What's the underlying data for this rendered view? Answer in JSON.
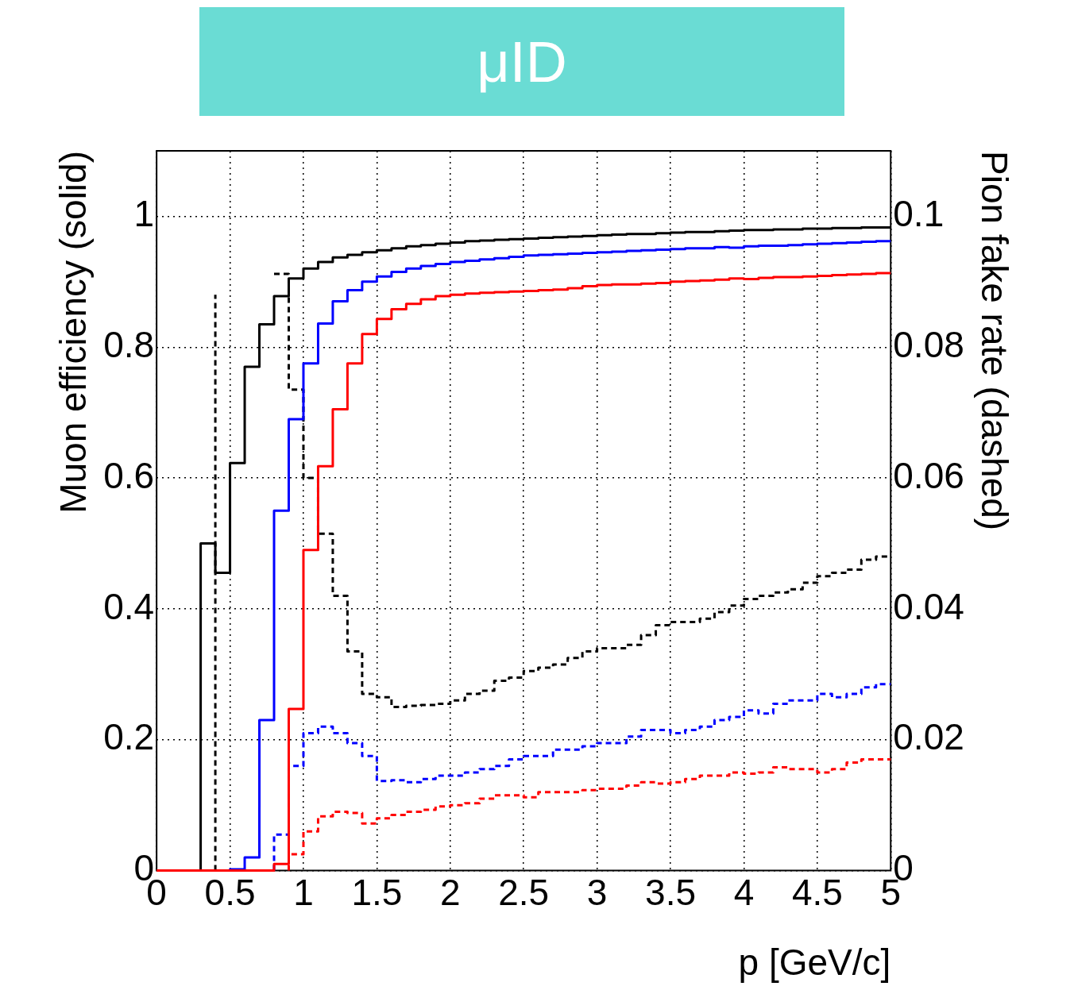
{
  "chart_data": {
    "type": "step",
    "title": "μID",
    "xlabel": "p [GeV/c]",
    "ylabel": "Muon efficiency (solid)",
    "y2label": "Pion fake rate (dashed)",
    "x": [
      0,
      0.1,
      0.2,
      0.3,
      0.4,
      0.5,
      0.6,
      0.7,
      0.8,
      0.9,
      1,
      1.1,
      1.2,
      1.3,
      1.4,
      1.5,
      1.6,
      1.7,
      1.8,
      1.9,
      2,
      2.1,
      2.2,
      2.3,
      2.4,
      2.5,
      2.6,
      2.7,
      2.8,
      2.9,
      3,
      3.1,
      3.2,
      3.3,
      3.4,
      3.5,
      3.6,
      3.7,
      3.8,
      3.9,
      4,
      4.1,
      4.2,
      4.3,
      4.4,
      4.5,
      4.6,
      4.7,
      4.8,
      4.9,
      5
    ],
    "xlim": [
      0,
      5
    ],
    "xticks": [
      0,
      0.5,
      1,
      1.5,
      2,
      2.5,
      3,
      3.5,
      4,
      4.5,
      5
    ],
    "ylim": [
      0,
      1.1
    ],
    "yticks": [
      0,
      0.2,
      0.4,
      0.6,
      0.8,
      1
    ],
    "y2lim": [
      0,
      0.11
    ],
    "y2ticks": [
      0,
      0.02,
      0.04,
      0.06,
      0.08,
      0.1
    ],
    "grid": true,
    "series": [
      {
        "color": "#000000",
        "line_style": "dashed",
        "axis": "y2",
        "x": [
          0.4,
          0.4,
          0.5,
          0.6,
          0.7,
          0.8,
          0.9,
          1,
          1.1,
          1.2,
          1.3,
          1.4,
          1.5,
          1.6,
          1.7,
          1.8,
          1.9,
          2,
          2.1,
          2.2,
          2.3,
          2.4,
          2.5,
          2.6,
          2.7,
          2.8,
          2.9,
          3,
          3.1,
          3.2,
          3.3,
          3.4,
          3.5,
          3.6,
          3.7,
          3.8,
          3.9,
          4,
          4.1,
          4.2,
          4.3,
          4.4,
          4.5,
          4.6,
          4.7,
          4.8,
          4.9,
          5
        ],
        "values": [
          0,
          0.088,
          null,
          null,
          null,
          0.0912,
          0.0735,
          0.06,
          0.0515,
          0.042,
          0.0335,
          0.027,
          0.0265,
          0.025,
          0.0252,
          0.0253,
          0.0255,
          0.026,
          0.027,
          0.0275,
          0.029,
          0.0295,
          0.0305,
          0.031,
          0.0315,
          0.0325,
          0.0335,
          0.034,
          0.034,
          0.0345,
          0.036,
          0.0375,
          0.038,
          0.038,
          0.0385,
          0.0395,
          0.0405,
          0.0415,
          0.042,
          0.0425,
          0.043,
          0.044,
          0.045,
          0.0455,
          0.046,
          0.0475,
          0.048,
          0.048
        ]
      },
      {
        "color": "#0000ff",
        "line_style": "dashed",
        "axis": "y2",
        "x": [
          0.8,
          0.8,
          0.9,
          1,
          1.1,
          1.2,
          1.3,
          1.4,
          1.5,
          1.6,
          1.7,
          1.8,
          1.9,
          2,
          2.1,
          2.2,
          2.3,
          2.4,
          2.5,
          2.6,
          2.7,
          2.8,
          2.9,
          3,
          3.1,
          3.2,
          3.3,
          3.4,
          3.5,
          3.6,
          3.7,
          3.8,
          3.9,
          4,
          4.1,
          4.2,
          4.3,
          4.4,
          4.5,
          4.6,
          4.7,
          4.8,
          4.9,
          5
        ],
        "values": [
          0,
          0.0055,
          0.016,
          0.021,
          0.022,
          0.021,
          0.0195,
          0.0175,
          0.0137,
          0.0138,
          0.0135,
          0.014,
          0.0145,
          0.0145,
          0.015,
          0.0155,
          0.016,
          0.017,
          0.0175,
          0.0175,
          0.0185,
          0.0185,
          0.019,
          0.0195,
          0.0195,
          0.0205,
          0.0215,
          0.0215,
          0.021,
          0.0215,
          0.022,
          0.023,
          0.0235,
          0.0245,
          0.024,
          0.0255,
          0.026,
          0.026,
          0.027,
          0.0265,
          0.027,
          0.028,
          0.0285,
          0.0285
        ]
      },
      {
        "color": "#ff0000",
        "line_style": "dashed",
        "axis": "y2",
        "x": [
          0.9,
          0.9,
          1,
          1.1,
          1.2,
          1.3,
          1.4,
          1.5,
          1.6,
          1.7,
          1.8,
          1.9,
          2,
          2.1,
          2.2,
          2.3,
          2.4,
          2.5,
          2.6,
          2.7,
          2.8,
          2.9,
          3,
          3.1,
          3.2,
          3.3,
          3.4,
          3.5,
          3.6,
          3.7,
          3.8,
          3.9,
          4,
          4.1,
          4.2,
          4.3,
          4.4,
          4.5,
          4.6,
          4.7,
          4.8,
          4.9,
          5
        ],
        "values": [
          0,
          0.0025,
          0.006,
          0.0083,
          0.009,
          0.0088,
          0.0072,
          0.008,
          0.0085,
          0.009,
          0.0093,
          0.0098,
          0.01,
          0.0103,
          0.011,
          0.0115,
          0.0115,
          0.0112,
          0.012,
          0.012,
          0.012,
          0.0123,
          0.0125,
          0.0125,
          0.013,
          0.0135,
          0.0133,
          0.0135,
          0.014,
          0.0145,
          0.0145,
          0.015,
          0.0148,
          0.015,
          0.0158,
          0.0155,
          0.0155,
          0.015,
          0.0155,
          0.0165,
          0.017,
          0.017,
          0.017
        ]
      },
      {
        "color": "#000000",
        "line_style": "solid",
        "x": [
          0.3,
          0.3,
          0.4,
          0.5,
          0.6,
          0.7,
          0.8,
          0.9,
          1,
          1.1,
          1.2,
          1.3,
          1.4,
          1.5,
          1.6,
          1.7,
          1.8,
          1.9,
          2,
          2.1,
          2.2,
          2.3,
          2.4,
          2.5,
          2.6,
          2.7,
          2.8,
          2.9,
          3,
          3.1,
          3.2,
          3.3,
          3.4,
          3.5,
          3.6,
          3.7,
          3.8,
          3.9,
          4,
          4.1,
          4.2,
          4.3,
          4.4,
          4.5,
          4.6,
          4.7,
          4.8,
          4.9,
          5
        ],
        "values": [
          0,
          0.5,
          0.455,
          0.623,
          0.77,
          0.835,
          0.878,
          0.905,
          0.92,
          0.93,
          0.937,
          0.941,
          0.945,
          0.948,
          0.951,
          0.954,
          0.956,
          0.958,
          0.96,
          0.962,
          0.963,
          0.964,
          0.965,
          0.966,
          0.967,
          0.968,
          0.969,
          0.97,
          0.971,
          0.972,
          0.973,
          0.973,
          0.974,
          0.975,
          0.976,
          0.976,
          0.977,
          0.978,
          0.979,
          0.979,
          0.98,
          0.98,
          0.981,
          0.981,
          0.982,
          0.982,
          0.983,
          0.983,
          0.983
        ]
      },
      {
        "color": "#0000ff",
        "line_style": "solid",
        "x": [
          0.5,
          0.5,
          0.6,
          0.7,
          0.8,
          0.9,
          1,
          1.1,
          1.2,
          1.3,
          1.4,
          1.5,
          1.6,
          1.7,
          1.8,
          1.9,
          2,
          2.1,
          2.2,
          2.3,
          2.4,
          2.5,
          2.6,
          2.7,
          2.8,
          2.9,
          3,
          3.1,
          3.2,
          3.3,
          3.4,
          3.5,
          3.6,
          3.7,
          3.8,
          3.9,
          4,
          4.1,
          4.2,
          4.3,
          4.4,
          4.5,
          4.6,
          4.7,
          4.8,
          4.9,
          5
        ],
        "values": [
          0,
          0.002,
          0.02,
          0.23,
          0.55,
          0.69,
          0.775,
          0.836,
          0.87,
          0.887,
          0.9,
          0.908,
          0.915,
          0.92,
          0.924,
          0.927,
          0.93,
          0.932,
          0.934,
          0.936,
          0.938,
          0.94,
          0.941,
          0.942,
          0.943,
          0.944,
          0.945,
          0.946,
          0.947,
          0.948,
          0.949,
          0.95,
          0.951,
          0.951,
          0.953,
          0.952,
          0.954,
          0.955,
          0.955,
          0.956,
          0.957,
          0.958,
          0.959,
          0.96,
          0.961,
          0.962,
          0.962
        ]
      },
      {
        "color": "#ff0000",
        "line_style": "solid",
        "values": [
          0,
          0,
          0,
          0,
          0,
          0,
          0,
          0,
          0.01,
          0.247,
          0.49,
          0.618,
          0.705,
          0.775,
          0.82,
          0.843,
          0.858,
          0.866,
          0.873,
          0.878,
          0.88,
          0.882,
          0.883,
          0.884,
          0.885,
          0.886,
          0.887,
          0.888,
          0.89,
          0.893,
          0.895,
          0.896,
          0.896,
          0.897,
          0.898,
          0.9,
          0.901,
          0.902,
          0.903,
          0.905,
          0.904,
          0.906,
          0.907,
          0.907,
          0.908,
          0.909,
          0.91,
          0.911,
          0.912,
          0.913,
          0.913
        ]
      }
    ]
  }
}
